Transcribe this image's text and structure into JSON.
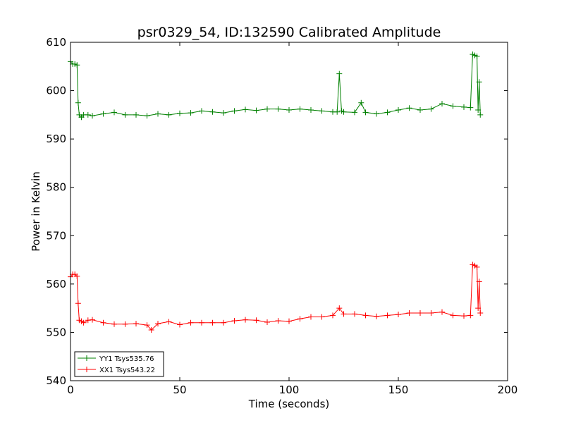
{
  "chart_data": {
    "type": "line",
    "title": "psr0329_54, ID:132590 Calibrated Amplitude",
    "xlabel": "Time (seconds)",
    "ylabel": "Power in Kelvin",
    "xlim": [
      0,
      200
    ],
    "ylim": [
      540,
      610
    ],
    "xticks": [
      0,
      50,
      100,
      150,
      200
    ],
    "yticks": [
      540,
      550,
      560,
      570,
      580,
      590,
      600,
      610
    ],
    "grid": false,
    "legend_position": "lower-left",
    "marker": "plus",
    "series": [
      {
        "name": "YY1 Tsys535.76",
        "color": "#008000",
        "x": [
          0,
          1,
          2,
          3,
          3.5,
          4,
          5,
          6,
          8,
          10,
          15,
          20,
          25,
          30,
          35,
          40,
          45,
          50,
          55,
          60,
          65,
          70,
          75,
          80,
          85,
          90,
          95,
          100,
          105,
          110,
          115,
          120,
          122,
          123,
          124,
          125,
          130,
          133,
          135,
          140,
          145,
          150,
          155,
          160,
          165,
          170,
          175,
          180,
          183,
          184,
          185,
          186,
          186.5,
          187,
          187.5
        ],
        "values": [
          606,
          605.5,
          605.5,
          605.3,
          597.5,
          595,
          594.5,
          595,
          595,
          594.8,
          595.2,
          595.5,
          595,
          595,
          594.8,
          595.2,
          595,
          595.3,
          595.4,
          595.8,
          595.6,
          595.4,
          595.8,
          596.1,
          595.9,
          596.2,
          596.2,
          596,
          596.2,
          596,
          595.8,
          595.6,
          595.6,
          603.5,
          595.8,
          595.6,
          595.5,
          597.5,
          595.5,
          595.2,
          595.5,
          596,
          596.4,
          596,
          596.2,
          597.3,
          596.8,
          596.6,
          596.5,
          607.5,
          607.3,
          607.1,
          596,
          601.8,
          595
        ]
      },
      {
        "name": "XX1 Tsys543.22",
        "color": "#ff0000",
        "x": [
          0,
          1,
          2,
          3,
          3.5,
          4,
          5,
          6,
          8,
          10,
          15,
          20,
          25,
          30,
          35,
          37,
          40,
          45,
          50,
          55,
          60,
          65,
          70,
          75,
          80,
          85,
          90,
          95,
          100,
          105,
          110,
          115,
          120,
          123,
          125,
          130,
          135,
          140,
          145,
          150,
          155,
          160,
          165,
          170,
          175,
          180,
          183,
          184,
          185,
          186,
          186.5,
          187,
          187.5
        ],
        "values": [
          561.5,
          562,
          562,
          561.6,
          556,
          552.5,
          552.3,
          552,
          552.5,
          552.6,
          552,
          551.7,
          551.7,
          551.8,
          551.5,
          550.5,
          551.8,
          552.2,
          551.6,
          552,
          552,
          552,
          552,
          552.4,
          552.6,
          552.5,
          552.1,
          552.4,
          552.3,
          552.8,
          553.2,
          553.2,
          553.5,
          555,
          553.8,
          553.8,
          553.5,
          553.3,
          553.5,
          553.7,
          554,
          554,
          554,
          554.2,
          553.5,
          553.4,
          553.5,
          564,
          563.8,
          563.5,
          555,
          560.5,
          554
        ]
      }
    ]
  }
}
